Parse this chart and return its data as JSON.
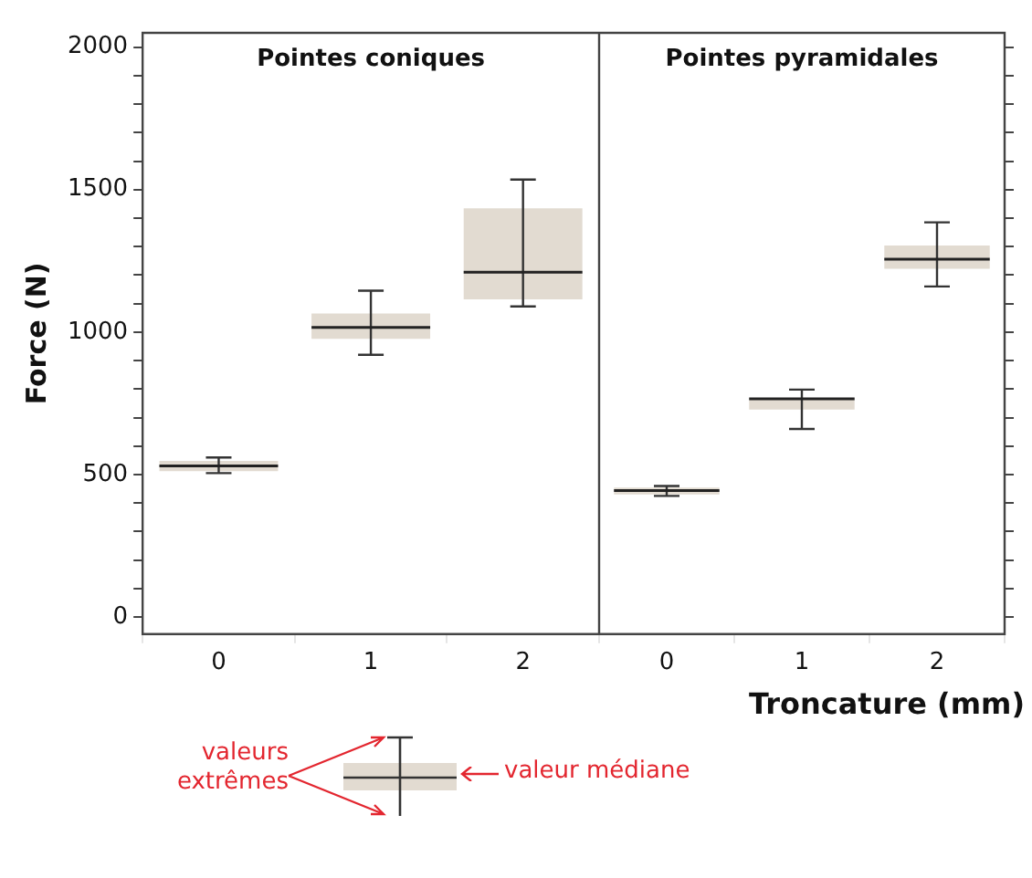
{
  "chart_data": [
    {
      "type": "box",
      "title": "Pointes coniques",
      "ylabel": "Force (N)",
      "categories": [
        "0",
        "1",
        "2"
      ],
      "ylim": [
        -60,
        2050
      ],
      "yticks": [
        0,
        {
          "value": 100,
          "label": null
        },
        {
          "value": 200,
          "label": null
        },
        {
          "value": 300,
          "label": null
        },
        {
          "value": 400,
          "label": null
        },
        500,
        {
          "value": 600,
          "label": null
        },
        {
          "value": 700,
          "label": null
        },
        {
          "value": 800,
          "label": null
        },
        {
          "value": 900,
          "label": null
        },
        1000,
        {
          "value": 1100,
          "label": null
        },
        {
          "value": 1200,
          "label": null
        },
        {
          "value": 1300,
          "label": null
        },
        {
          "value": 1400,
          "label": null
        },
        1500,
        {
          "value": 1600,
          "label": null
        },
        {
          "value": 1700,
          "label": null
        },
        {
          "value": 1800,
          "label": null
        },
        {
          "value": 1900,
          "label": null
        },
        2000
      ],
      "series": [
        {
          "color": "#e2dbd1",
          "boxes": [
            {
              "low": 505,
              "q1": 512,
              "median": 530,
              "q3": 548,
              "high": 560
            },
            {
              "low": 920,
              "q1": 976,
              "median": 1016,
              "q3": 1065,
              "high": 1145
            },
            {
              "low": 1090,
              "q1": 1115,
              "median": 1210,
              "q3": 1434,
              "high": 1535
            }
          ]
        }
      ],
      "annotations": [
        "valeurs extrêmes",
        "valeur médiane"
      ]
    },
    {
      "type": "box",
      "title": "Pointes pyramidales",
      "xlabel": "Troncature (mm)",
      "categories": [
        "0",
        "1",
        "2"
      ],
      "ylim": [
        -60,
        2050
      ],
      "tick_labels": "x",
      "yticks": [
        0,
        {
          "value": 100,
          "label": null
        },
        {
          "value": 200,
          "label": null
        },
        {
          "value": 300,
          "label": null
        },
        {
          "value": 400,
          "label": null
        },
        500,
        {
          "value": 600,
          "label": null
        },
        {
          "value": 700,
          "label": null
        },
        {
          "value": 800,
          "label": null
        },
        {
          "value": 900,
          "label": null
        },
        1000,
        {
          "value": 1100,
          "label": null
        },
        {
          "value": 1200,
          "label": null
        },
        {
          "value": 1300,
          "label": null
        },
        {
          "value": 1400,
          "label": null
        },
        1500,
        {
          "value": 1600,
          "label": null
        },
        {
          "value": 1700,
          "label": null
        },
        {
          "value": 1800,
          "label": null
        },
        {
          "value": 1900,
          "label": null
        },
        2000
      ],
      "series": [
        {
          "color": "#e2dbd1",
          "boxes": [
            {
              "low": 425,
              "q1": 430,
              "median": 444,
              "q3": 454,
              "high": 460
            },
            {
              "low": 660,
              "q1": 728,
              "median": 766,
              "q3": 770,
              "high": 798
            },
            {
              "low": 1160,
              "q1": 1222,
              "median": 1256,
              "q3": 1304,
              "high": 1385
            }
          ]
        }
      ]
    }
  ]
}
